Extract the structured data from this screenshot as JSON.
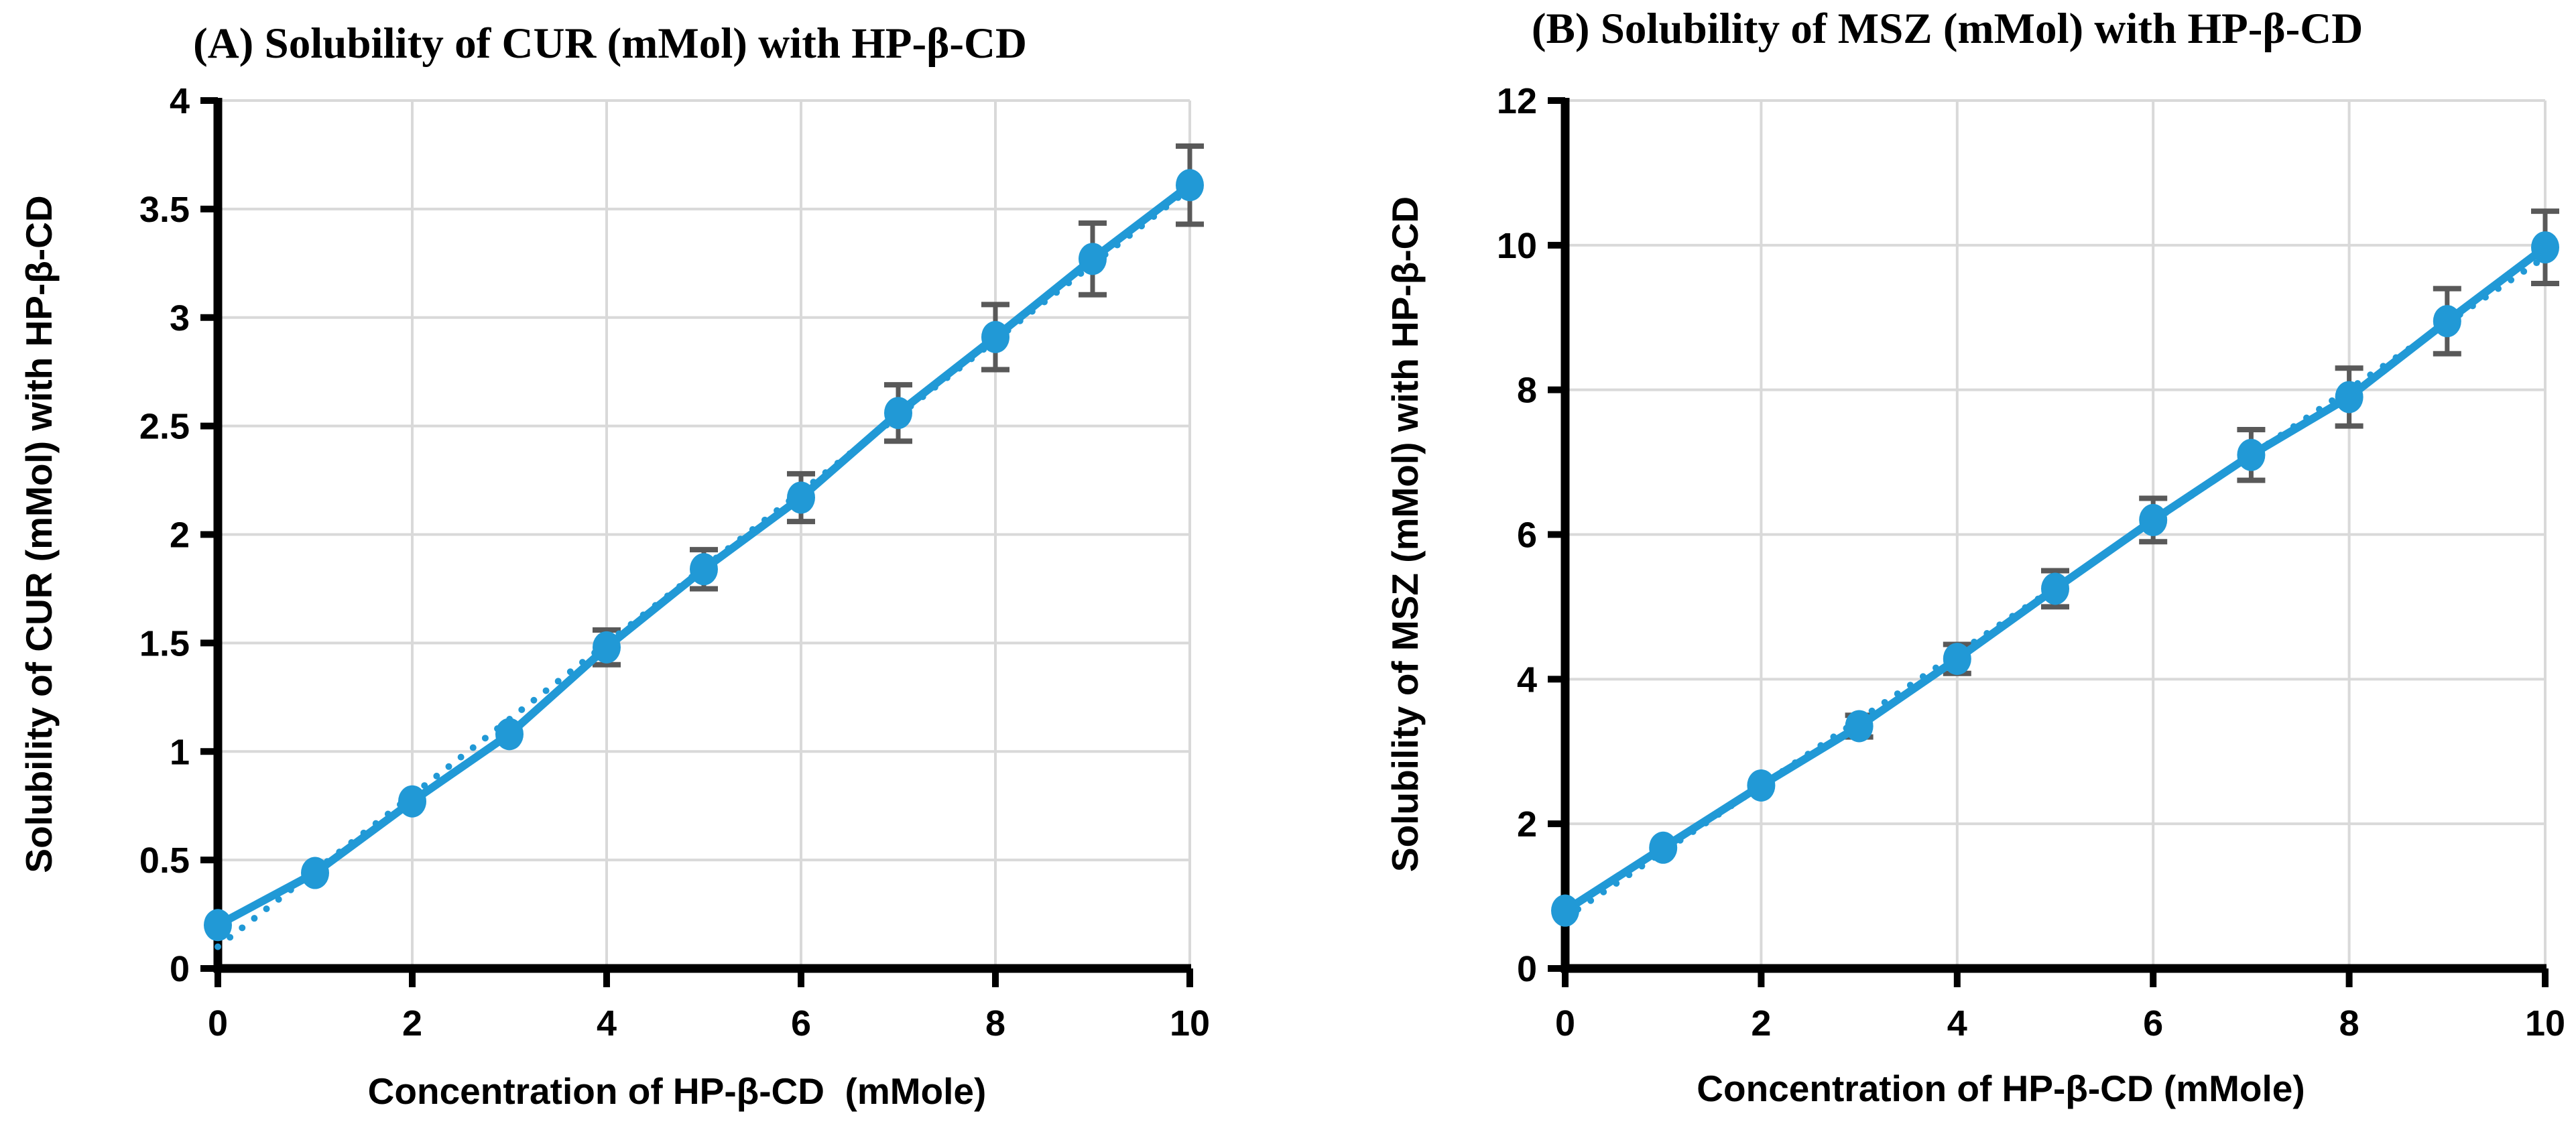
{
  "chart_data": [
    {
      "type": "line",
      "panel_label": "A",
      "title": "(A) Solubility of CUR (mMol) with HP-β-CD",
      "xlabel": "Concentration of HP-β-CD  (mMole)",
      "ylabel": "Solubility of CUR (mMol) with HP-β-CD",
      "x": [
        0,
        1,
        2,
        3,
        4,
        5,
        6,
        7,
        8,
        9,
        10
      ],
      "series": [
        {
          "name": "CUR solubility (mMol)",
          "values": [
            0.2,
            0.44,
            0.77,
            1.08,
            1.48,
            1.84,
            2.17,
            2.56,
            2.91,
            3.27,
            3.61
          ],
          "error": [
            0,
            0,
            0,
            0,
            0.08,
            0.09,
            0.11,
            0.13,
            0.15,
            0.165,
            0.18
          ]
        }
      ],
      "trendline": {
        "style": "dotted",
        "slope": 0.3495,
        "intercept": 0.1
      },
      "xlim": [
        0,
        10
      ],
      "ylim": [
        0,
        4
      ],
      "x_ticks": [
        "0",
        "2",
        "4",
        "6",
        "8",
        "10"
      ],
      "y_ticks": [
        "0",
        "0.5",
        "1",
        "1.5",
        "2",
        "2.5",
        "3",
        "3.5",
        "4"
      ],
      "grid": true,
      "legend": "none",
      "marker": "circle",
      "colors": {
        "series": "#2199D6",
        "error_bar": "#595959",
        "grid": "#D9D9D9",
        "axis": "#000000",
        "text": "#000000"
      }
    },
    {
      "type": "line",
      "panel_label": "B",
      "title": "(B) Solubility of MSZ (mMol) with HP-β-CD",
      "xlabel": "Concentration of HP-β-CD (mMole)",
      "ylabel": "Solubility of MSZ (mMol) with HP-β-CD",
      "x": [
        0,
        1,
        2,
        3,
        4,
        5,
        6,
        7,
        8,
        9,
        10
      ],
      "series": [
        {
          "name": "MSZ solubility (mMol)",
          "values": [
            0.8,
            1.67,
            2.53,
            3.35,
            4.28,
            5.25,
            6.2,
            7.1,
            7.9,
            8.95,
            9.97
          ],
          "error": [
            0,
            0,
            0,
            0.15,
            0.2,
            0.25,
            0.3,
            0.35,
            0.4,
            0.45,
            0.5
          ]
        }
      ],
      "trendline": {
        "style": "dotted",
        "slope": 0.9137,
        "intercept": 0.7
      },
      "xlim": [
        0,
        10
      ],
      "ylim": [
        0,
        12
      ],
      "x_ticks": [
        "0",
        "2",
        "4",
        "6",
        "8",
        "10"
      ],
      "y_ticks": [
        "0",
        "2",
        "4",
        "6",
        "8",
        "10",
        "12"
      ],
      "grid": true,
      "legend": "none",
      "marker": "circle",
      "colors": {
        "series": "#2199D6",
        "error_bar": "#595959",
        "grid": "#D9D9D9",
        "axis": "#000000",
        "text": "#000000"
      }
    }
  ]
}
